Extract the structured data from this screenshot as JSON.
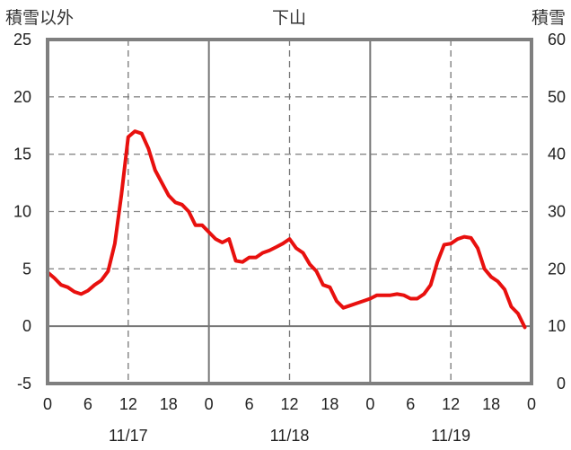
{
  "chart_data": {
    "type": "line",
    "title": "下山",
    "ylabel_left": "積雪以外",
    "ylabel_right": "積雪",
    "ylim_left": [
      -5,
      25
    ],
    "ylim_right": [
      0,
      60
    ],
    "yticks_left": [
      "25",
      "20",
      "15",
      "10",
      "5",
      "0",
      "-5"
    ],
    "yticks_right": [
      "60",
      "50",
      "40",
      "30",
      "20",
      "10",
      "0"
    ],
    "xlim": [
      0,
      72
    ],
    "xticks": [
      {
        "x": 0,
        "label": "0"
      },
      {
        "x": 6,
        "label": "6"
      },
      {
        "x": 12,
        "label": "12"
      },
      {
        "x": 18,
        "label": "18"
      },
      {
        "x": 24,
        "label": "0"
      },
      {
        "x": 30,
        "label": "6"
      },
      {
        "x": 36,
        "label": "12"
      },
      {
        "x": 42,
        "label": "18"
      },
      {
        "x": 48,
        "label": "0"
      },
      {
        "x": 54,
        "label": "6"
      },
      {
        "x": 60,
        "label": "12"
      },
      {
        "x": 66,
        "label": "18"
      },
      {
        "x": 72,
        "label": "0"
      }
    ],
    "day_labels": [
      {
        "x": 12,
        "label": "11/17"
      },
      {
        "x": 36,
        "label": "11/18"
      },
      {
        "x": 60,
        "label": "11/19"
      }
    ],
    "grid": true,
    "series": [
      {
        "axis": "left",
        "color": "#e8100e",
        "x": [
          0,
          1,
          2,
          3,
          4,
          5,
          6,
          7,
          8,
          9,
          10,
          11,
          12,
          13,
          14,
          15,
          16,
          17,
          18,
          19,
          20,
          21,
          22,
          23,
          24,
          25,
          26,
          27,
          28,
          29,
          30,
          31,
          32,
          33,
          34,
          35,
          36,
          37,
          38,
          39,
          40,
          41,
          42,
          43,
          44,
          45,
          46,
          47,
          48,
          49,
          50,
          51,
          52,
          53,
          54,
          55,
          56,
          57,
          58,
          59,
          60,
          61,
          62,
          63,
          64,
          65,
          66,
          67,
          68,
          69,
          70,
          71
        ],
        "values": [
          4.7,
          4.2,
          3.6,
          3.4,
          3.0,
          2.8,
          3.1,
          3.6,
          4.0,
          4.8,
          7.2,
          11.5,
          16.5,
          17.0,
          16.8,
          15.5,
          13.6,
          12.5,
          11.4,
          10.8,
          10.6,
          10.0,
          8.8,
          8.8,
          8.2,
          7.6,
          7.3,
          7.6,
          5.7,
          5.6,
          6.0,
          6.0,
          6.4,
          6.6,
          6.9,
          7.2,
          7.6,
          6.8,
          6.4,
          5.4,
          4.8,
          3.6,
          3.4,
          2.2,
          1.6,
          1.8,
          2.0,
          2.2,
          2.4,
          2.7,
          2.7,
          2.7,
          2.8,
          2.7,
          2.4,
          2.4,
          2.8,
          3.6,
          5.6,
          7.1,
          7.2,
          7.6,
          7.8,
          7.7,
          6.8,
          5.0,
          4.3,
          3.9,
          3.2,
          1.7,
          1.1,
          -0.1
        ]
      },
      {
        "axis": "right",
        "color": "#7030a0",
        "x": [
          0,
          71
        ],
        "values": [
          0,
          0
        ]
      }
    ]
  }
}
